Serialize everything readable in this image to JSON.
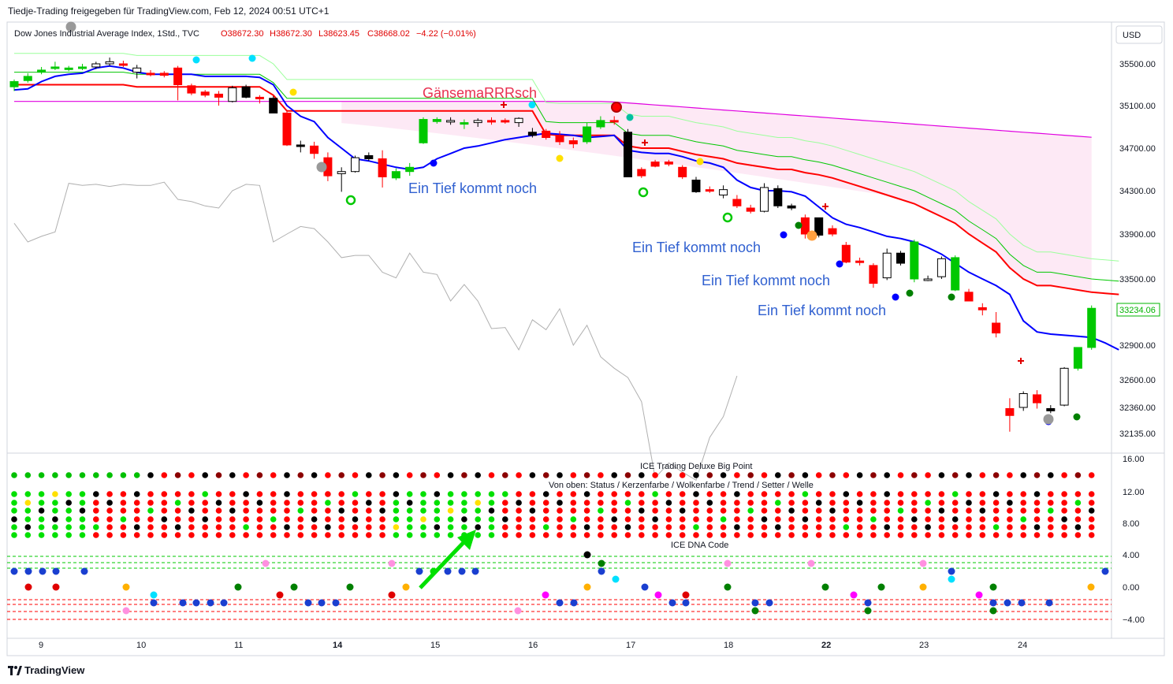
{
  "header": {
    "caption": "Tiedje-Trading freigegeben für TradingView.com, Feb 12, 2024 00:51 UTC+1",
    "symbol": "Dow Jones Industrial Average Index, 1Std., TVC",
    "ohlc": {
      "o": "O38672.30",
      "h": "H38672.30",
      "l": "L38623.45",
      "c": "C38668.02",
      "chg": "−4.22 (−0.01%)"
    },
    "currency": "USD"
  },
  "footer": {
    "brand": "TradingView"
  },
  "colors": {
    "up": "#00c800",
    "down": "#ff0000",
    "black": "#000000",
    "kijun": "#ff0000",
    "tenkan": "#0000ff",
    "cloud": "#fde3f3",
    "price_badge": "#00b400"
  },
  "chart_data": [
    {
      "type": "candlestick",
      "title": "",
      "price_axis": {
        "ticks": [
          "35500.00",
          "35100.00",
          "34700.00",
          "34300.00",
          "33900.00",
          "33500.00",
          "32900.00",
          "32600.00",
          "32360.00",
          "32135.00"
        ],
        "last_price": "33234.06"
      },
      "x_ticks": [
        "9",
        "10",
        "11",
        "14",
        "15",
        "16",
        "17",
        "18",
        "22",
        "23",
        "24"
      ],
      "annotations": [
        "GänsemaRRRsch",
        "Ein Tief kommt noch",
        "Ein Tief kommt noch",
        "Ein Tief kommt noch",
        "Ein Tief kommt noch"
      ],
      "candles": [
        [
          35280,
          35350,
          35240,
          35330,
          "g"
        ],
        [
          35340,
          35410,
          35320,
          35380,
          "g"
        ],
        [
          35420,
          35470,
          35400,
          35440,
          "g"
        ],
        [
          35460,
          35520,
          35440,
          35470,
          "g"
        ],
        [
          35450,
          35480,
          35430,
          35460,
          "g"
        ],
        [
          35460,
          35500,
          35440,
          35470,
          "g"
        ],
        [
          35470,
          35520,
          35450,
          35500,
          "w"
        ],
        [
          35500,
          35560,
          35480,
          35520,
          "w"
        ],
        [
          35500,
          35530,
          35470,
          35490,
          "r"
        ],
        [
          35460,
          35490,
          35360,
          35420,
          "w"
        ],
        [
          35410,
          35440,
          35380,
          35400,
          "r"
        ],
        [
          35410,
          35430,
          35370,
          35390,
          "r"
        ],
        [
          35460,
          35480,
          35150,
          35300,
          "r"
        ],
        [
          35290,
          35310,
          35200,
          35220,
          "r"
        ],
        [
          35230,
          35250,
          35180,
          35200,
          "r"
        ],
        [
          35210,
          35240,
          35100,
          35180,
          "r"
        ],
        [
          35140,
          35290,
          35130,
          35270,
          "w"
        ],
        [
          35280,
          35300,
          35170,
          35180,
          "k"
        ],
        [
          35180,
          35200,
          35120,
          35170,
          "r"
        ],
        [
          35170,
          35190,
          35040,
          35030,
          "k"
        ],
        [
          35030,
          35060,
          34720,
          34730,
          "r"
        ],
        [
          34720,
          34770,
          34660,
          34730,
          "k"
        ],
        [
          34720,
          34760,
          34600,
          34650,
          "r"
        ],
        [
          34610,
          34660,
          34390,
          34440,
          "r"
        ],
        [
          34480,
          34520,
          34290,
          34460,
          "w"
        ],
        [
          34480,
          34630,
          34470,
          34610,
          "w"
        ],
        [
          34630,
          34660,
          34580,
          34600,
          "k"
        ],
        [
          34600,
          34680,
          34330,
          34430,
          "r"
        ],
        [
          34420,
          34510,
          34400,
          34480,
          "g"
        ],
        [
          34480,
          34560,
          34440,
          34520,
          "g"
        ],
        [
          34750,
          34990,
          34740,
          34970,
          "g"
        ],
        [
          34970,
          34990,
          34930,
          34950,
          "g"
        ],
        [
          34950,
          34990,
          34920,
          34960,
          "w"
        ],
        [
          34930,
          34970,
          34880,
          34940,
          "g"
        ],
        [
          34940,
          34980,
          34900,
          34960,
          "w"
        ],
        [
          34960,
          34990,
          34920,
          34950,
          "r"
        ],
        [
          34960,
          34980,
          34930,
          34950,
          "r"
        ],
        [
          34940,
          34990,
          34900,
          34980,
          "w"
        ],
        [
          34850,
          34890,
          34800,
          34820,
          "k"
        ],
        [
          34860,
          34880,
          34780,
          34800,
          "r"
        ],
        [
          34820,
          34860,
          34730,
          34760,
          "r"
        ],
        [
          34770,
          34800,
          34700,
          34740,
          "r"
        ],
        [
          34760,
          34940,
          34740,
          34900,
          "g"
        ],
        [
          34900,
          35000,
          34880,
          34960,
          "g"
        ],
        [
          34960,
          35000,
          34920,
          34950,
          "r"
        ],
        [
          34850,
          34880,
          34450,
          34430,
          "k"
        ],
        [
          34440,
          34520,
          34420,
          34500,
          "r"
        ],
        [
          34530,
          34590,
          34520,
          34570,
          "r"
        ],
        [
          34570,
          34590,
          34530,
          34550,
          "r"
        ],
        [
          34520,
          34540,
          34410,
          34430,
          "r"
        ],
        [
          34400,
          34430,
          34280,
          34290,
          "k"
        ],
        [
          34300,
          34340,
          34280,
          34310,
          "r"
        ],
        [
          34260,
          34350,
          34230,
          34310,
          "w"
        ],
        [
          34220,
          34260,
          34140,
          34160,
          "r"
        ],
        [
          34140,
          34170,
          34090,
          34110,
          "r"
        ],
        [
          34110,
          34370,
          34100,
          34330,
          "w"
        ],
        [
          34320,
          34350,
          34140,
          34160,
          "k"
        ],
        [
          34160,
          34180,
          34120,
          34140,
          "k"
        ],
        [
          34050,
          34080,
          33860,
          33900,
          "r"
        ],
        [
          33890,
          34050,
          33870,
          34050,
          "k"
        ],
        [
          33950,
          33980,
          33880,
          33900,
          "r"
        ],
        [
          33800,
          33830,
          33640,
          33650,
          "r"
        ],
        [
          33650,
          33690,
          33620,
          33660,
          "r"
        ],
        [
          33620,
          33640,
          33420,
          33460,
          "r"
        ],
        [
          33510,
          33770,
          33490,
          33730,
          "w"
        ],
        [
          33730,
          33750,
          33620,
          33640,
          "k"
        ],
        [
          33500,
          33850,
          33470,
          33830,
          "g"
        ],
        [
          33490,
          33530,
          33480,
          33500,
          "w"
        ],
        [
          33520,
          33700,
          33500,
          33680,
          "w"
        ],
        [
          33690,
          33710,
          33390,
          33400,
          "g"
        ],
        [
          33380,
          33410,
          33300,
          33300,
          "r"
        ],
        [
          33240,
          33280,
          33170,
          33220,
          "r"
        ],
        [
          33100,
          33200,
          32970,
          33010,
          "r"
        ],
        [
          32290,
          32440,
          32150,
          32350,
          "r"
        ],
        [
          32360,
          32500,
          32330,
          32480,
          "w"
        ],
        [
          32470,
          32510,
          32350,
          32400,
          "r"
        ],
        [
          32350,
          32380,
          32310,
          32330,
          "k"
        ],
        [
          32380,
          32710,
          32370,
          32700,
          "w"
        ],
        [
          32700,
          32850,
          32680,
          32880,
          "g"
        ],
        [
          32880,
          33260,
          32860,
          33234,
          "g"
        ]
      ],
      "kijun": [
        35300,
        35300,
        35300,
        35300,
        35300,
        35300,
        35300,
        35300,
        35300,
        35280,
        35280,
        35280,
        35280,
        35280,
        35280,
        35280,
        35280,
        35280,
        35280,
        35200,
        35050,
        35050,
        35050,
        35050,
        35050,
        35050,
        35050,
        35050,
        35050,
        35050,
        35050,
        35050,
        35050,
        35050,
        35050,
        35050,
        35050,
        35050,
        35050,
        34830,
        34820,
        34820,
        34820,
        34820,
        34820,
        34720,
        34700,
        34700,
        34700,
        34670,
        34640,
        34620,
        34600,
        34560,
        34540,
        34520,
        34500,
        34500,
        34470,
        34450,
        34420,
        34380,
        34340,
        34300,
        34260,
        34220,
        34180,
        34120,
        34060,
        34000,
        33900,
        33820,
        33740,
        33600,
        33500,
        33440,
        33440,
        33420,
        33400,
        33380,
        33370,
        33360
      ],
      "tenkan": [
        35250,
        35260,
        35330,
        35380,
        35400,
        35410,
        35460,
        35480,
        35460,
        35420,
        35400,
        35400,
        35400,
        35400,
        35380,
        35380,
        35380,
        35380,
        35370,
        35300,
        35100,
        35000,
        34950,
        34800,
        34700,
        34600,
        34580,
        34550,
        34520,
        34500,
        34520,
        34600,
        34650,
        34700,
        34720,
        34750,
        34780,
        34800,
        34820,
        34840,
        34830,
        34820,
        34800,
        34810,
        34820,
        34680,
        34660,
        34650,
        34650,
        34620,
        34580,
        34560,
        34520,
        34400,
        34330,
        34300,
        34300,
        34290,
        34250,
        34150,
        34050,
        33990,
        33960,
        33920,
        33880,
        33860,
        33830,
        33780,
        33720,
        33640,
        33560,
        33500,
        33440,
        33360,
        33120,
        33020,
        33000,
        32990,
        32980,
        32970,
        32920,
        32860
      ]
    },
    {
      "type": "dot_matrix",
      "title": "ICE Trading Deluxe Big Point",
      "subtitle": "Von oben: Status / Kerzenfarbe / Wolkenfarbe / Trend / Setter / Welle",
      "y_ticks": [
        "16.00",
        "12.00",
        "8.00"
      ]
    },
    {
      "type": "scatter",
      "title": "ICE DNA Code",
      "y_ticks": [
        "4.00",
        "0.00",
        "−4.00"
      ]
    }
  ]
}
